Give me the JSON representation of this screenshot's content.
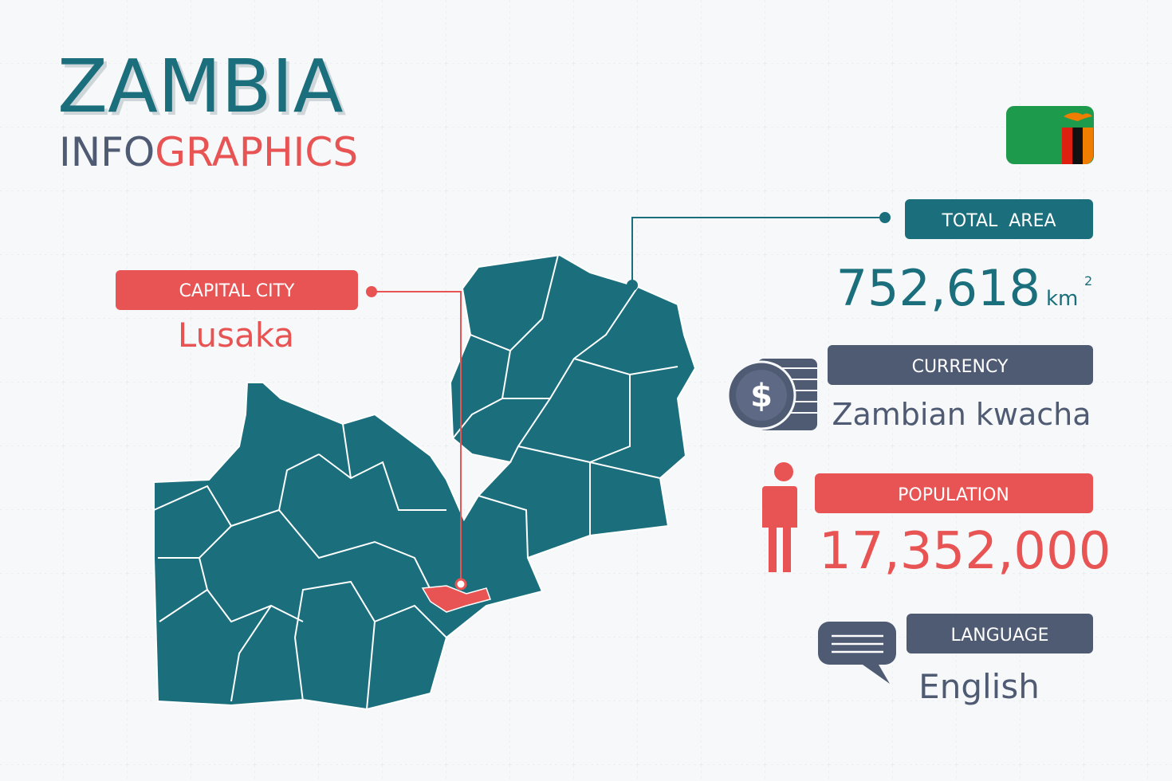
{
  "header": {
    "title": "ZAMBIA",
    "subtitle_part1": "INFO",
    "subtitle_part2": "GRAPHICS"
  },
  "capital": {
    "label": "CAPITAL CITY",
    "value": "Lusaka"
  },
  "total_area": {
    "label": "TOTAL  AREA",
    "value": "752,618",
    "unit": "km",
    "unit_power": "2"
  },
  "currency": {
    "label": "CURRENCY",
    "icon": "$",
    "value": "Zambian kwacha"
  },
  "population": {
    "label": "POPULATION",
    "value": "17,352,000"
  },
  "language": {
    "label": "LANGUAGE",
    "value": "English"
  }
}
